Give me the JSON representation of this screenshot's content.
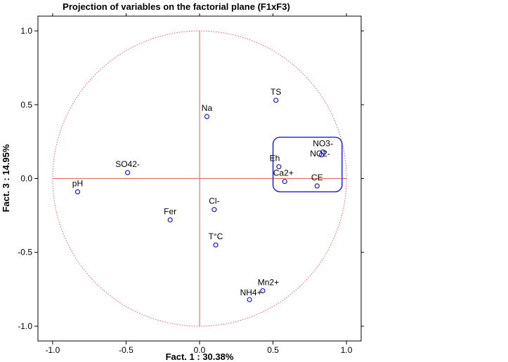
{
  "chart_data": {
    "type": "scatter",
    "title": "Projection of variables on the factorial plane (F1xF3)",
    "xlabel": "Fact. 1  : 30.38%",
    "ylabel": "Fact. 3  : 14.95%",
    "xlim": [
      -1.1,
      1.1
    ],
    "ylim": [
      -1.1,
      1.1
    ],
    "x_ticks": [
      "-1.0",
      "-0.5",
      "0.0",
      "0.5",
      "1.0"
    ],
    "y_ticks": [
      "1.0",
      "0.5",
      "0.0",
      "-0.5",
      "-1.0"
    ],
    "grid": false,
    "unit_circle": true,
    "point_color": "#1a1ad0",
    "circle_color": "#e06060",
    "highlight_color": "#1a1ad0",
    "points": [
      {
        "label": "TS",
        "x": 0.52,
        "y": 0.53
      },
      {
        "label": "Na",
        "x": 0.05,
        "y": 0.42
      },
      {
        "label": "NO3-",
        "x": 0.84,
        "y": 0.18
      },
      {
        "label": "NO2-",
        "x": 0.83,
        "y": 0.16
      },
      {
        "label": "Eh",
        "x": 0.54,
        "y": 0.08
      },
      {
        "label": "SO42-",
        "x": -0.49,
        "y": 0.04
      },
      {
        "label": "Ca2+",
        "x": 0.58,
        "y": -0.02
      },
      {
        "label": "CE",
        "x": 0.8,
        "y": -0.05
      },
      {
        "label": "pH",
        "x": -0.83,
        "y": -0.09
      },
      {
        "label": "Cl-",
        "x": 0.1,
        "y": -0.21
      },
      {
        "label": "Fer",
        "x": -0.2,
        "y": -0.28
      },
      {
        "label": "T°C",
        "x": 0.11,
        "y": -0.45
      },
      {
        "label": "Mn2+",
        "x": 0.43,
        "y": -0.76
      },
      {
        "label": "NH4+",
        "x": 0.34,
        "y": -0.82
      }
    ],
    "highlight_box": {
      "x0": 0.5,
      "x1": 0.97,
      "y0": -0.09,
      "y1": 0.28
    }
  }
}
